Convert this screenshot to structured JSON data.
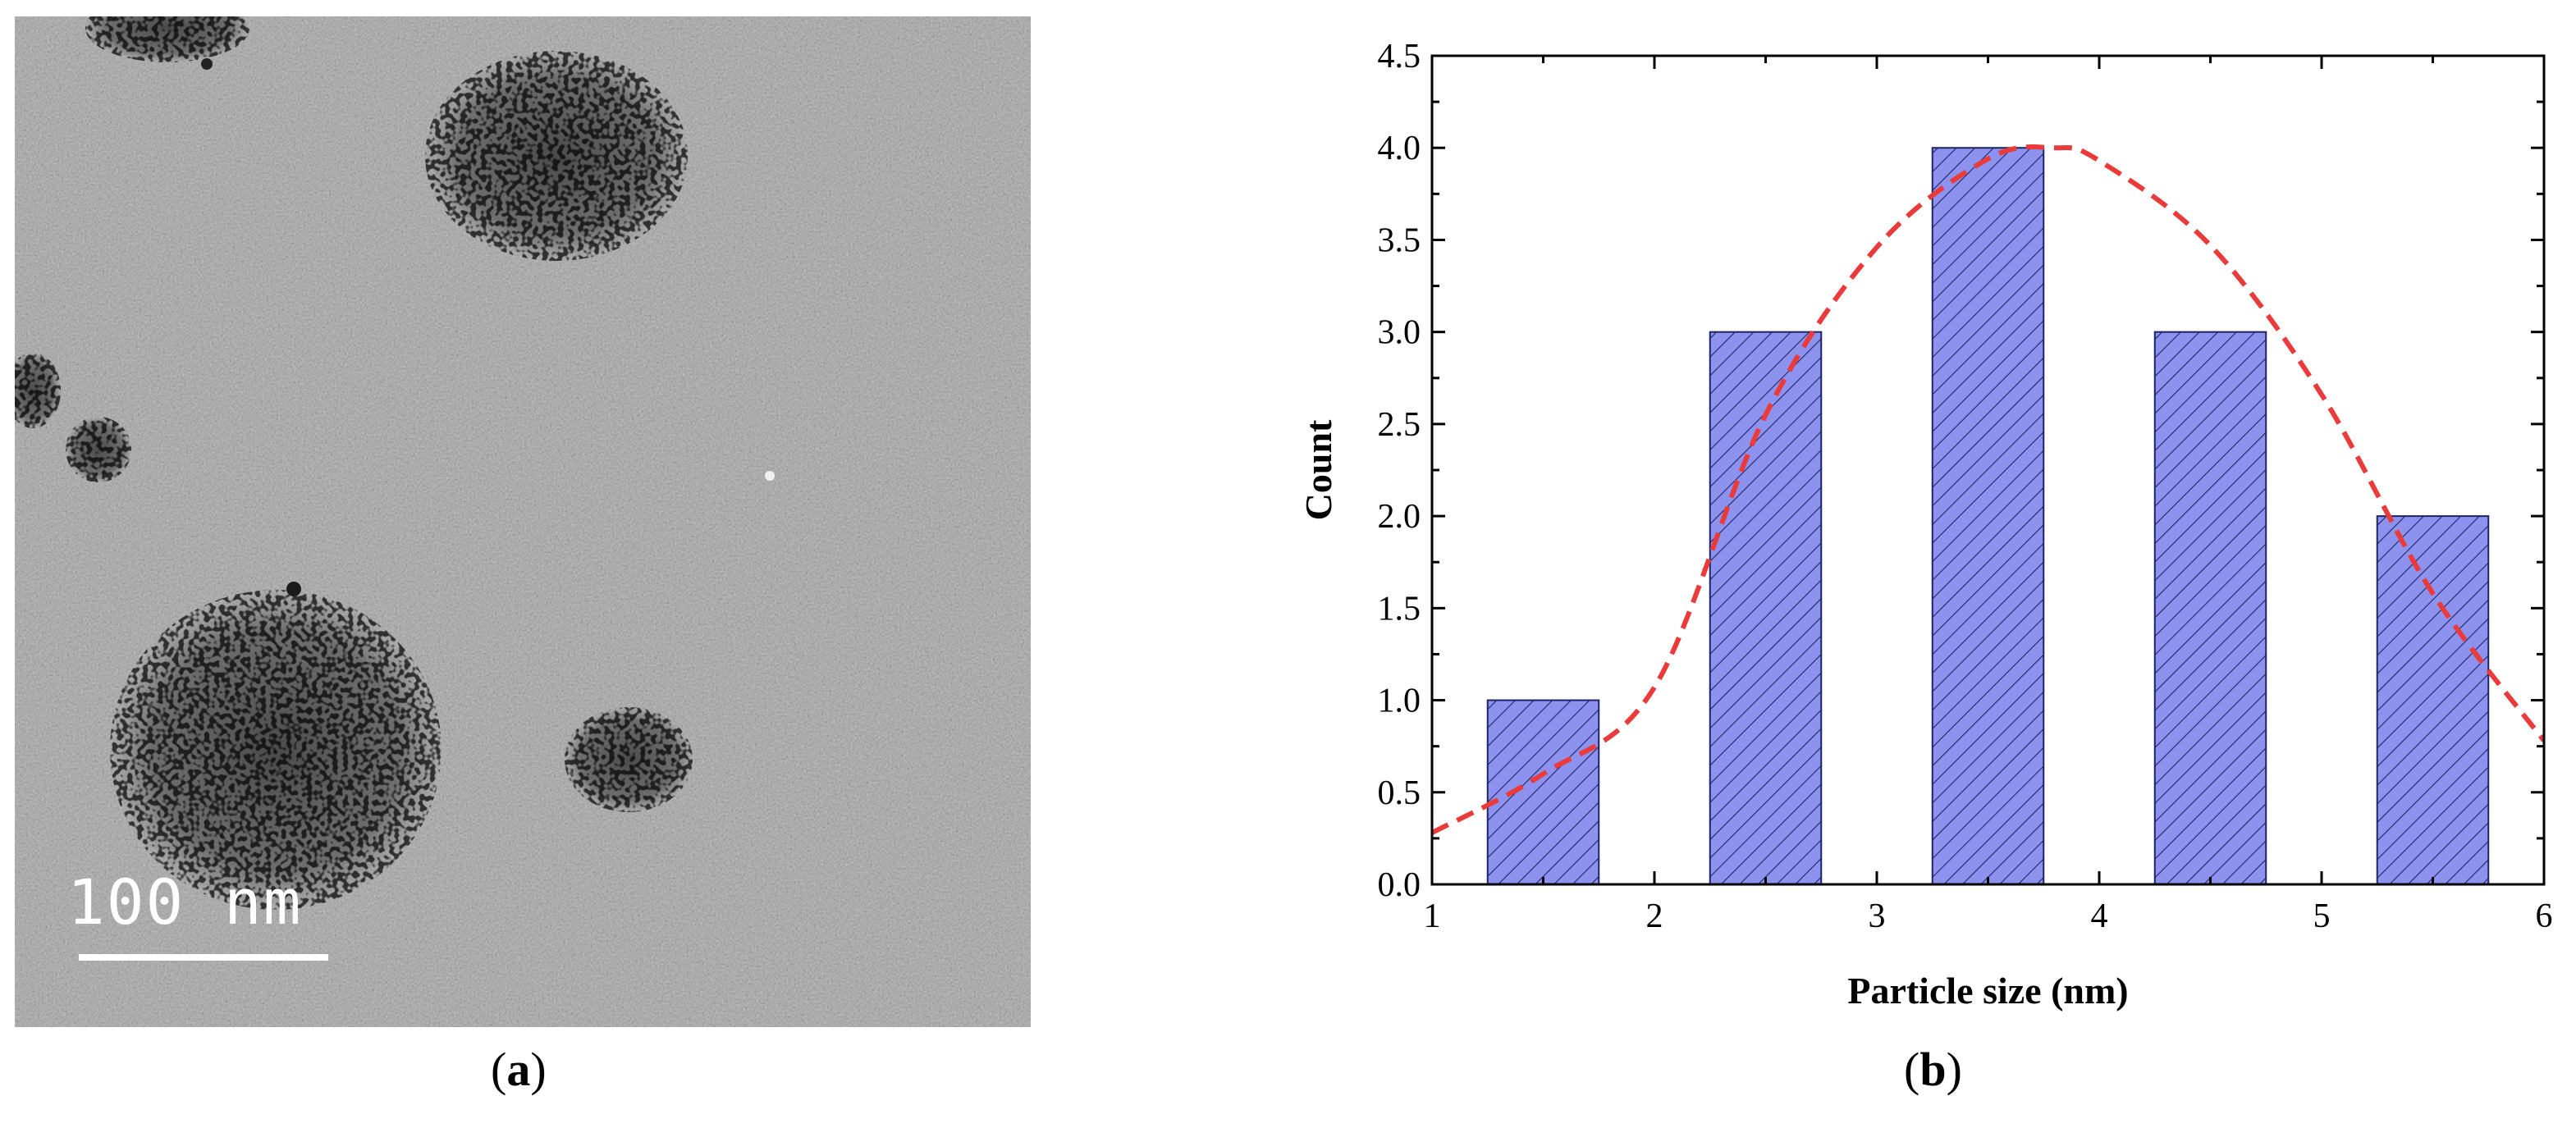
{
  "panel_a": {
    "caption_letter": "a",
    "scale_bar_label": "100 nm"
  },
  "panel_b": {
    "caption_letter": "b"
  },
  "colors": {
    "bar_fill": "#8d92ee",
    "bar_hatch": "#1e2466",
    "fit_curve": "#ea3a3a",
    "tem_background": "#9a9a9a"
  },
  "chart_data": {
    "type": "bar",
    "xlabel": "Particle size (nm)",
    "ylabel": "Count",
    "xlim": [
      1,
      6
    ],
    "ylim": [
      0,
      4.5
    ],
    "x_ticks": [
      "1",
      "2",
      "3",
      "4",
      "5",
      "6"
    ],
    "y_ticks": [
      "0.0",
      "0.5",
      "1.0",
      "1.5",
      "2.0",
      "2.5",
      "3.0",
      "3.5",
      "4.0",
      "4.5"
    ],
    "bins": [
      {
        "start": 1.25,
        "end": 1.75,
        "value": 1
      },
      {
        "start": 2.25,
        "end": 2.75,
        "value": 3
      },
      {
        "start": 3.25,
        "end": 3.75,
        "value": 4
      },
      {
        "start": 4.25,
        "end": 4.75,
        "value": 3
      },
      {
        "start": 5.25,
        "end": 5.75,
        "value": 2
      }
    ],
    "fit_curve": {
      "style": "dashed",
      "points": [
        [
          1,
          0.28
        ],
        [
          1.5,
          0.6
        ],
        [
          2,
          1.07
        ],
        [
          2.5,
          2.55
        ],
        [
          3,
          3.46
        ],
        [
          3.5,
          3.94
        ],
        [
          3.8,
          4.0
        ],
        [
          4,
          3.93
        ],
        [
          4.5,
          3.47
        ],
        [
          5,
          2.66
        ],
        [
          5.5,
          1.58
        ],
        [
          6,
          0.78
        ]
      ]
    },
    "grid": false,
    "legend": "none"
  }
}
